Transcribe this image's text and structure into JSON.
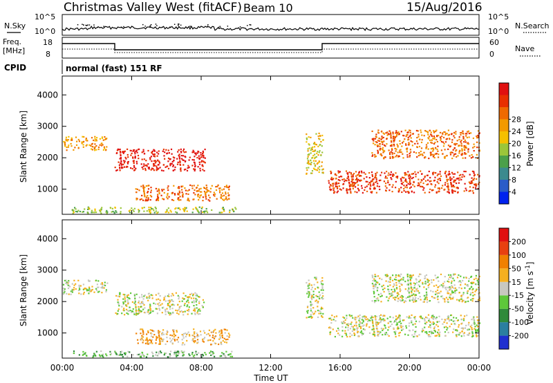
{
  "header": {
    "title": "Christmas Valley West (fitACF)",
    "beam": "Beam 10",
    "date": "15/Aug/2016"
  },
  "nsky_panel": {
    "left_label": "N.Sky",
    "left_ticks": [
      "10^5",
      "10^0"
    ],
    "right_ticks": [
      "10^5",
      "10^0"
    ],
    "right_label": "N.Search"
  },
  "freq_panel": {
    "left_label_1": "Freq.",
    "left_label_2": "[MHz]",
    "left_ticks": [
      "18",
      "8"
    ],
    "right_ticks": [
      "60",
      "0"
    ],
    "right_label": "Nave"
  },
  "cpid": {
    "label": "CPID",
    "program": "normal (fast) 151 RF"
  },
  "chart_data": [
    {
      "type": "heatmap",
      "panel": "power",
      "xlabel": "",
      "ylabel": "Slant Range [km]",
      "yticks": [
        "1000",
        "2000",
        "3000",
        "4000"
      ],
      "ylim": [
        200,
        4600
      ],
      "xlim": [
        0,
        24
      ],
      "colorbar": {
        "label": "Power [dB]",
        "ticks": [
          "4",
          "8",
          "12",
          "16",
          "20",
          "24",
          "28"
        ],
        "colors": [
          "#0022ee",
          "#2a5cc8",
          "#3b8a8e",
          "#4ba04a",
          "#9bc63a",
          "#f5c000",
          "#f39a00",
          "#ef6a00",
          "#e83000",
          "#e01010"
        ]
      },
      "echo_regions": [
        {
          "t0": 0.0,
          "t1": 2.6,
          "r0": 2250,
          "r1": 2700,
          "level": 6
        },
        {
          "t0": 3.0,
          "t1": 8.2,
          "r0": 1600,
          "r1": 2300,
          "level": 9
        },
        {
          "t0": 4.2,
          "t1": 9.6,
          "r0": 650,
          "r1": 1150,
          "level": 7
        },
        {
          "t0": 0.5,
          "t1": 10.0,
          "r0": 250,
          "r1": 450,
          "level": 4
        },
        {
          "t0": 14.0,
          "t1": 15.0,
          "r0": 1500,
          "r1": 2800,
          "level": 5
        },
        {
          "t0": 15.3,
          "t1": 24.0,
          "r0": 900,
          "r1": 1600,
          "level": 8
        },
        {
          "t0": 17.8,
          "t1": 24.0,
          "r0": 2000,
          "r1": 2900,
          "level": 7
        }
      ]
    },
    {
      "type": "heatmap",
      "panel": "velocity",
      "xlabel": "Time UT",
      "ylabel": "Slant Range [km]",
      "xticks": [
        "00:00",
        "04:00",
        "08:00",
        "12:00",
        "16:00",
        "20:00",
        "00:00"
      ],
      "yticks": [
        "1000",
        "2000",
        "3000",
        "4000"
      ],
      "ylim": [
        200,
        4600
      ],
      "xlim": [
        0,
        24
      ],
      "colorbar": {
        "label": "Velocity [m s^-1]",
        "ticks": [
          "200",
          "100",
          "50",
          "15",
          "-15",
          "-50",
          "-100",
          "-200"
        ],
        "colors": [
          "#1f2fd0",
          "#2b7fa0",
          "#2f8a3a",
          "#5ec83a",
          "#c8c8c0",
          "#f5b020",
          "#f08000",
          "#e84010",
          "#e01010"
        ]
      },
      "echo_regions": [
        {
          "t0": 0.0,
          "t1": 2.6,
          "r0": 2250,
          "r1": 2700,
          "level": 4
        },
        {
          "t0": 3.0,
          "t1": 8.2,
          "r0": 1600,
          "r1": 2300,
          "level": 4
        },
        {
          "t0": 4.2,
          "t1": 9.6,
          "r0": 650,
          "r1": 1150,
          "level": 5
        },
        {
          "t0": 0.5,
          "t1": 10.0,
          "r0": 250,
          "r1": 450,
          "level": 3
        },
        {
          "t0": 14.0,
          "t1": 15.0,
          "r0": 1500,
          "r1": 2800,
          "level": 4
        },
        {
          "t0": 15.3,
          "t1": 24.0,
          "r0": 900,
          "r1": 1600,
          "level": 4
        },
        {
          "t0": 17.8,
          "t1": 24.0,
          "r0": 2000,
          "r1": 2900,
          "level": 4
        }
      ]
    }
  ]
}
